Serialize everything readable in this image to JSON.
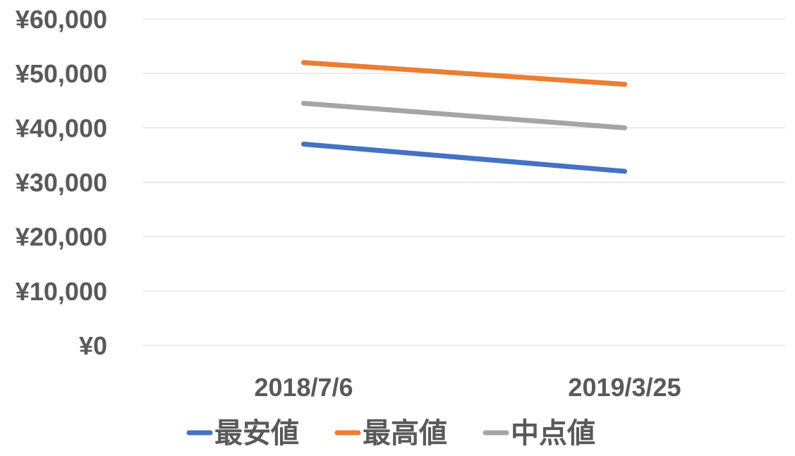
{
  "chart_data": {
    "type": "line",
    "categories": [
      "2018/7/6",
      "2019/3/25"
    ],
    "y_ticks": [
      "¥0",
      "¥10,000",
      "¥20,000",
      "¥30,000",
      "¥40,000",
      "¥50,000",
      "¥60,000"
    ],
    "ylim": [
      0,
      60000
    ],
    "grid": true,
    "legend_position": "bottom",
    "series": [
      {
        "name": "最安値",
        "values": [
          37000,
          32000
        ],
        "color": "#4472C4"
      },
      {
        "name": "最高値",
        "values": [
          52000,
          48000
        ],
        "color": "#ED7D31"
      },
      {
        "name": "中点値",
        "values": [
          44500,
          40000
        ],
        "color": "#A5A5A5"
      }
    ]
  }
}
